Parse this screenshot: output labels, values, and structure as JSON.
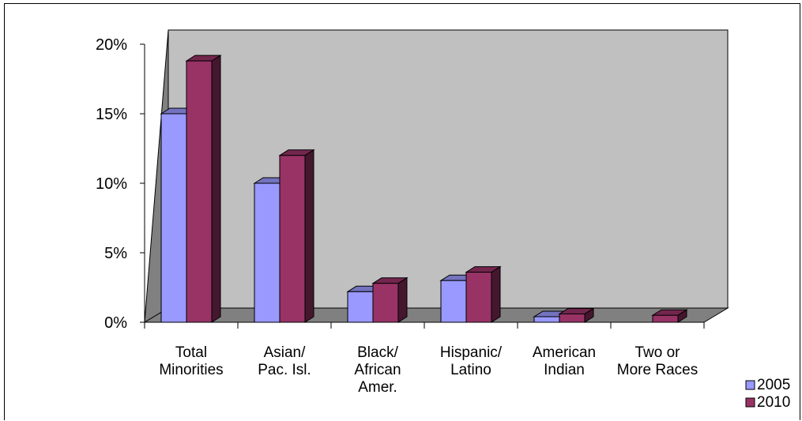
{
  "chart_data": {
    "type": "bar",
    "categories": [
      [
        "Total",
        "Minorities"
      ],
      [
        "Asian/",
        "Pac. Isl."
      ],
      [
        "Black/",
        "African",
        "Amer."
      ],
      [
        "Hispanic/",
        "Latino"
      ],
      [
        "American",
        "Indian"
      ],
      [
        "Two or",
        "More Races"
      ]
    ],
    "series": [
      {
        "name": "2005",
        "values": [
          15.0,
          10.0,
          2.2,
          3.0,
          0.4,
          0.0
        ],
        "color": "#9999ff"
      },
      {
        "name": "2010",
        "values": [
          18.8,
          12.0,
          2.8,
          3.6,
          0.6,
          0.5
        ],
        "color": "#993366"
      }
    ],
    "yticks": [
      "0%",
      "5%",
      "10%",
      "15%",
      "20%"
    ],
    "ylim": [
      0,
      20
    ],
    "grid": false,
    "legend_position": "bottom-right",
    "plot_wall_color": "#c0c0c0",
    "side_wall_color": "#808080"
  }
}
